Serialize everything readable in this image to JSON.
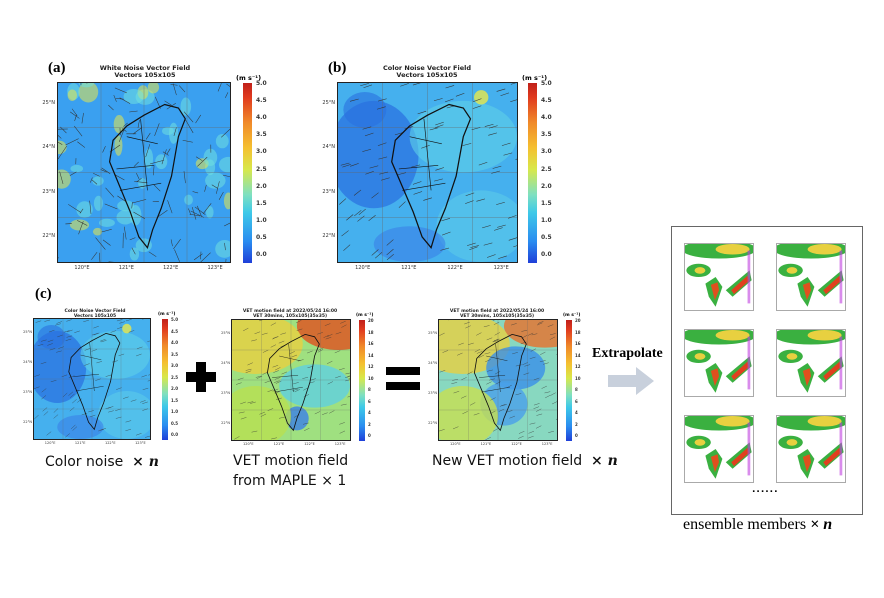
{
  "panel_a": {
    "label": "(a)",
    "title_line1": "White Noise Vector Field",
    "title_line2": "Vectors 105x105",
    "unit": "(m s⁻¹)",
    "ticks": [
      "5.0",
      "4.5",
      "4.0",
      "3.5",
      "3.0",
      "2.5",
      "2.0",
      "1.5",
      "1.0",
      "0.5",
      "0.0"
    ],
    "lat": [
      "25°N",
      "24°N",
      "23°N",
      "22°N"
    ],
    "lon": [
      "120°E",
      "121°E",
      "122°E",
      "123°E"
    ]
  },
  "panel_b": {
    "label": "(b)",
    "title_line1": "Color Noise Vector Field",
    "title_line2": "Vectors 105x105",
    "unit": "(m s⁻¹)",
    "ticks": [
      "5.0",
      "4.5",
      "4.0",
      "3.5",
      "3.0",
      "2.5",
      "2.0",
      "1.5",
      "1.0",
      "0.5",
      "0.0"
    ],
    "lat": [
      "25°N",
      "24°N",
      "23°N",
      "22°N"
    ],
    "lon": [
      "120°E",
      "121°E",
      "122°E",
      "123°E"
    ]
  },
  "panel_c": {
    "label": "(c)",
    "noise": {
      "title_line1": "Color Noise Vector Field",
      "title_line2": "Vectors 105x105",
      "unit": "(m s⁻¹)",
      "ticks": [
        "5.0",
        "4.5",
        "4.0",
        "3.5",
        "3.0",
        "2.5",
        "2.0",
        "1.5",
        "1.0",
        "0.5",
        "0.0"
      ],
      "lat": [
        "25°N",
        "24°N",
        "23°N",
        "22°N"
      ],
      "lon": [
        "120°E",
        "121°E",
        "122°E",
        "123°E"
      ],
      "caption": "Color noise",
      "caption_mult": "× n"
    },
    "vet": {
      "title_line1": "VET motion field at 2022/05/24 16:00",
      "title_line2": "VET 30mins, 105x105(35x35)",
      "unit": "(m s⁻¹)",
      "ticks": [
        "20",
        "18",
        "16",
        "14",
        "12",
        "10",
        "8",
        "6",
        "4",
        "2",
        "0"
      ],
      "lat": [
        "25°N",
        "24°N",
        "23°N",
        "22°N"
      ],
      "lon": [
        "120°E",
        "121°E",
        "122°E",
        "123°E"
      ],
      "caption_line1": "VET motion field",
      "caption_line2": "from MAPLE × 1"
    },
    "new_vet": {
      "title_line1": "VET motion field at 2022/05/24 16:00",
      "title_line2": "VET 30mins, 105x105(35x35)",
      "unit": "(m s⁻¹)",
      "ticks": [
        "20",
        "18",
        "16",
        "14",
        "12",
        "10",
        "8",
        "6",
        "4",
        "2",
        "0"
      ],
      "lat": [
        "25°N",
        "24°N",
        "23°N",
        "22°N"
      ],
      "lon": [
        "120°E",
        "121°E",
        "122°E",
        "123°E"
      ],
      "caption": "New VET motion field",
      "caption_mult": "× n"
    },
    "plus": "+",
    "equals": "="
  },
  "extrapolate": {
    "label": "Extrapolate"
  },
  "ensemble": {
    "ellipsis": "......",
    "caption": "ensemble members",
    "caption_mult": "× n",
    "members": 6
  }
}
